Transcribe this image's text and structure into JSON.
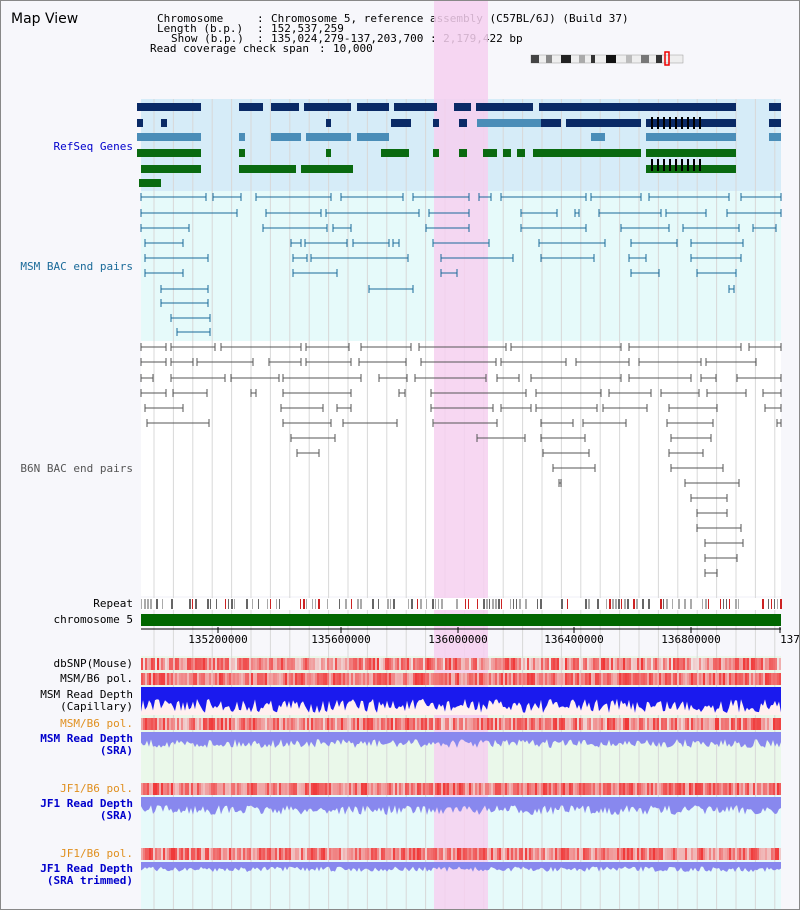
{
  "title": "Map View",
  "info": {
    "chromosome_key": "Chromosome",
    "chromosome_value": "Chromosome 5, reference assembly (C57BL/6J) (Build 37)",
    "length_key": "Length (b.p.)",
    "length_value": "152,537,259",
    "show_key": "Show (b.p.)",
    "show_value": "135,024,279-137,203,700 : 2,179,422 bp",
    "coverage_key": "Read coverage check span",
    "coverage_value": "10,000"
  },
  "track_labels": {
    "refseq": "RefSeq Genes",
    "msm_bac": "MSM BAC end pairs",
    "b6n_bac": "B6N BAC end pairs",
    "repeat": "Repeat",
    "chromosome": "chromosome 5",
    "dbsnp": "dbSNP(Mouse)",
    "msm_b6_pol_1": "MSM/B6 pol.",
    "msm_read_depth_cap": "MSM Read Depth\n(Capillary)",
    "msm_b6_pol_2": "MSM/B6 pol.",
    "msm_read_depth_sra": "MSM Read Depth\n(SRA)",
    "jf1_b6_pol_1": "JF1/B6 pol.",
    "jf1_read_depth_sra": "JF1 Read Depth\n(SRA)",
    "jf1_b6_pol_2": "JF1/B6 pol.",
    "jf1_read_depth_trim": "JF1 Read Depth\n(SRA trimmed)"
  },
  "axis_ticks": [
    "135200000",
    "135600000",
    "136000000",
    "136400000",
    "136800000",
    "137"
  ],
  "colors": {
    "refseq_bg": "#d6ecf8",
    "bac_bg": "#e6fafa",
    "highlight": "#f6d0f0",
    "refseq_dark": "#0a2a66",
    "refseq_mid": "#4a8db8",
    "refseq_green": "#0a6a10",
    "msm_bac": "#1a6a99",
    "b6n_bac": "#555555",
    "chromosome_bar": "#006600",
    "read_depth_cap": "#1a1aee",
    "read_depth_sra": "#8888ee",
    "pol_red": "#e83030"
  }
}
